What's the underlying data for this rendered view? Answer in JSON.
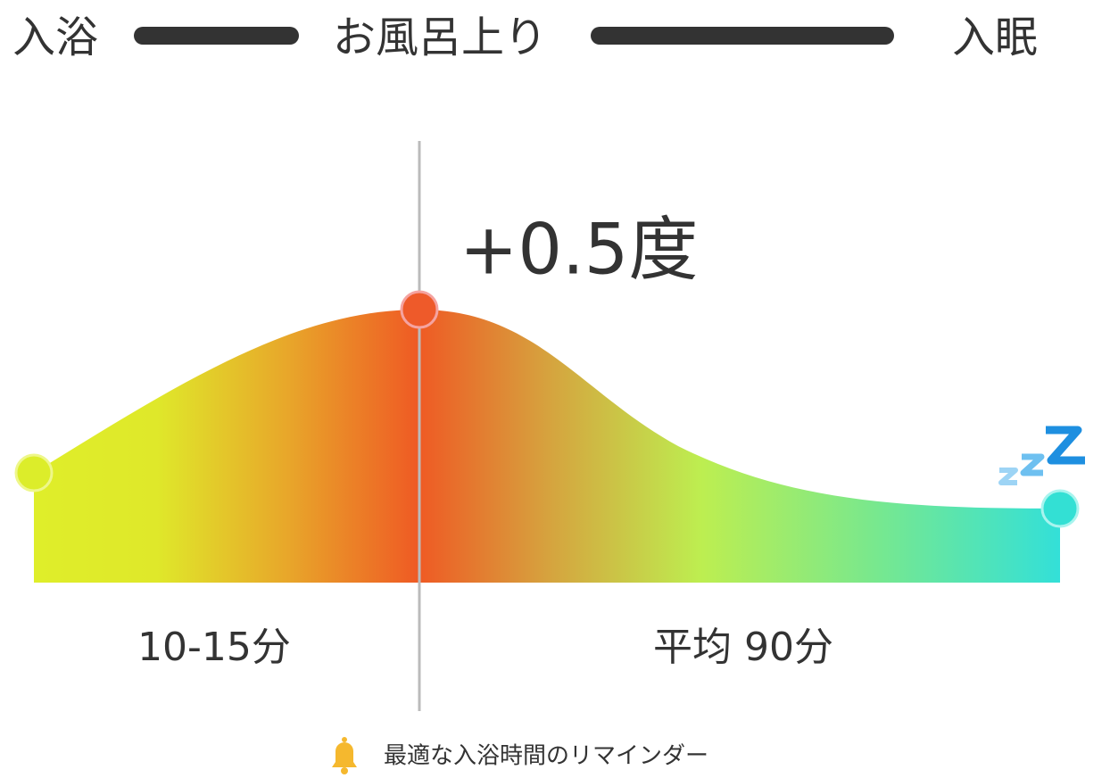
{
  "header": {
    "start": "入浴",
    "middle": "お風呂上り",
    "end": "入眠"
  },
  "peak_label": "+0.5度",
  "phases": [
    "10-15分",
    "平均 90分"
  ],
  "reminder": "最適な入浴時間のリマインダー"
}
